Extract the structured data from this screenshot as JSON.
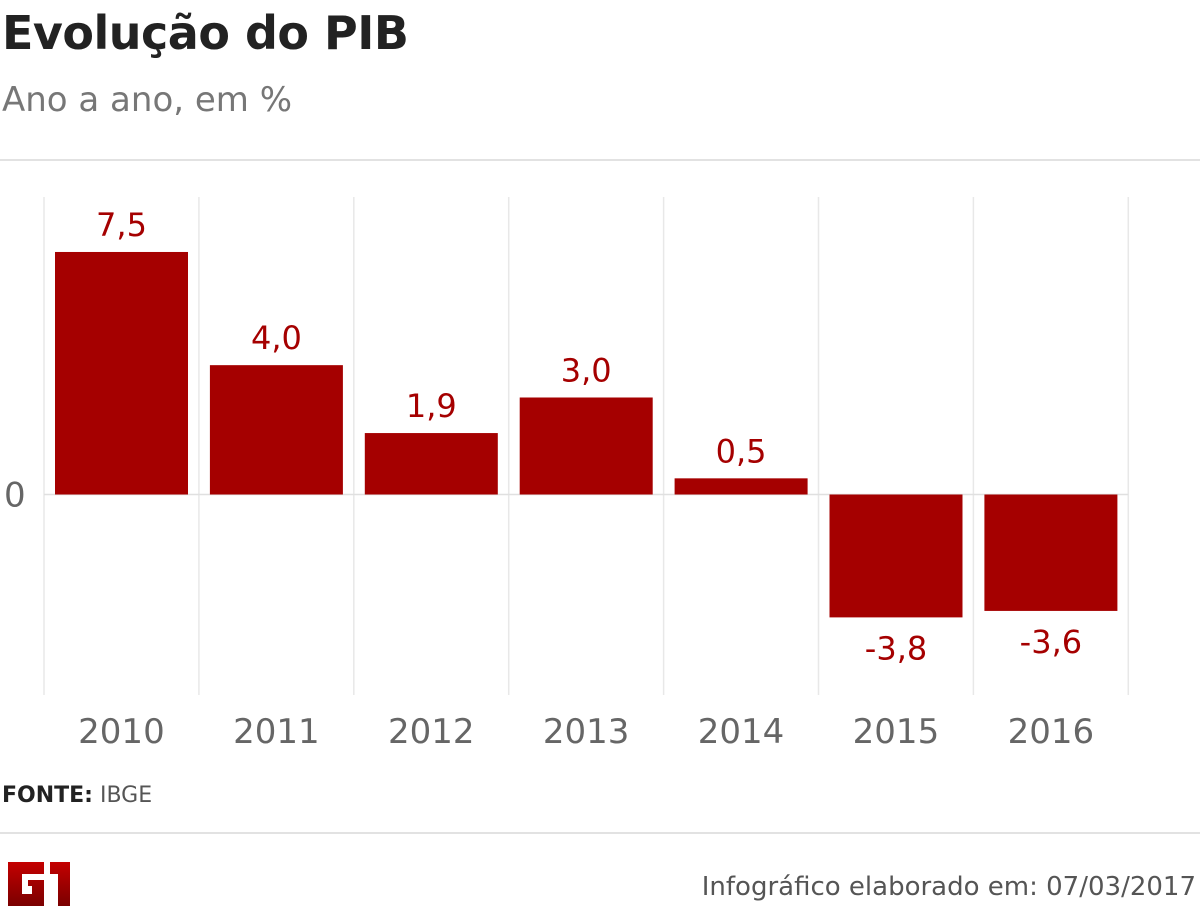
{
  "chart_data": {
    "type": "bar",
    "title": "Evolução do PIB",
    "subtitle": "Ano a ano, em %",
    "categories": [
      "2010",
      "2011",
      "2012",
      "2013",
      "2014",
      "2015",
      "2016"
    ],
    "values": [
      7.5,
      4.0,
      1.9,
      3.0,
      0.5,
      -3.8,
      -3.6
    ],
    "data_labels": [
      "7,5",
      "4,0",
      "1,9",
      "3,0",
      "0,5",
      "-3,8",
      "-3,6"
    ],
    "y_tick_labels": [
      "0"
    ],
    "ylim": [
      -6.2,
      9.2
    ],
    "xlabel": "",
    "ylabel": "",
    "grid": "vertical",
    "bar_color": "#a50000",
    "label_color": "#a50000"
  },
  "source": {
    "label": "FONTE:",
    "value": "IBGE"
  },
  "footer": {
    "logo": "G1",
    "credit": "Infográfico elaborado em: 07/03/2017"
  }
}
